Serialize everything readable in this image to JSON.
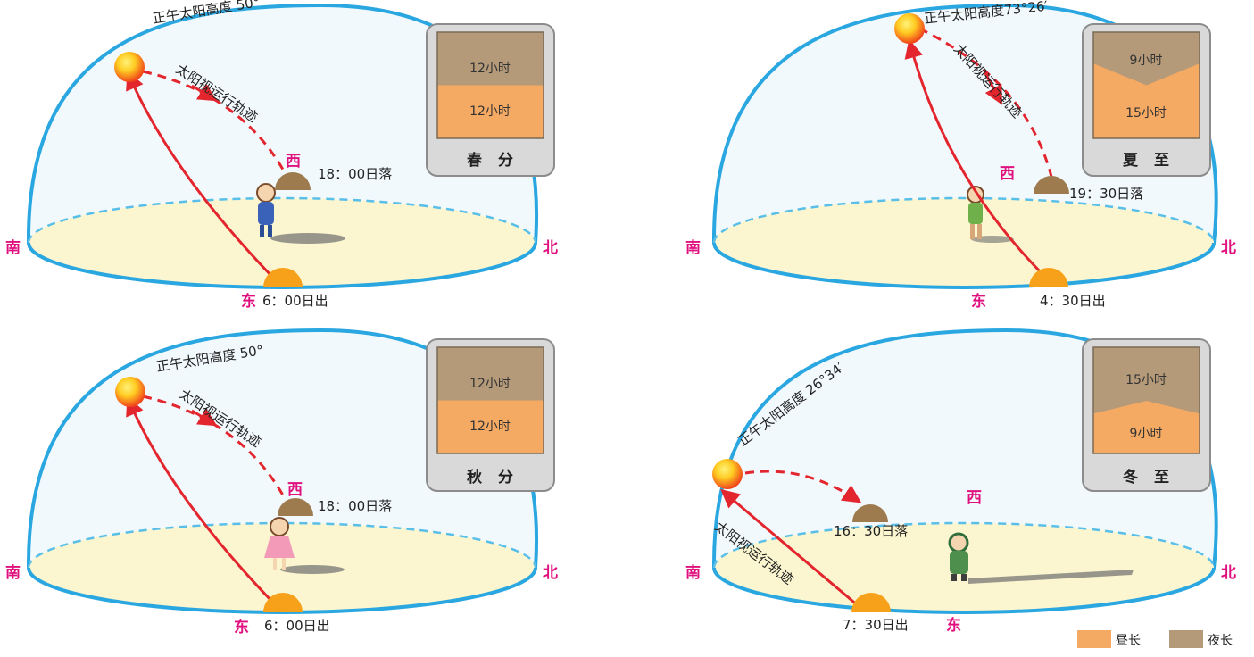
{
  "colors": {
    "day": "#f5aa63",
    "night": "#b59a7a",
    "dome": "#2aa7e0",
    "ground": "#fbf6cf",
    "path": "#e3262e",
    "direction_text": "#e0117f"
  },
  "legend": {
    "day_label": "昼长",
    "night_label": "夜长"
  },
  "panels": [
    {
      "season": "春 分",
      "noon_altitude": "正午太阳高度 50°",
      "path_label": "太阳视运行轨迹",
      "sunrise": "6：00日出",
      "sunset": "18：00日落",
      "day_hours": "12小时",
      "night_hours": "12小时",
      "day_fraction": 0.5,
      "dir_south": "南",
      "dir_north": "北",
      "dir_east": "东",
      "dir_west": "西"
    },
    {
      "season": "夏 至",
      "noon_altitude": "正午太阳高度73°26′",
      "path_label": "太阳视运行轨迹",
      "sunrise": "4：30日出",
      "sunset": "19：30日落",
      "day_hours": "15小时",
      "night_hours": "9小时",
      "day_fraction": 0.625,
      "dir_south": "南",
      "dir_north": "北",
      "dir_east": "东",
      "dir_west": "西"
    },
    {
      "season": "秋 分",
      "noon_altitude": "正午太阳高度 50°",
      "path_label": "太阳视运行轨迹",
      "sunrise": "6：00日出",
      "sunset": "18：00日落",
      "day_hours": "12小时",
      "night_hours": "12小时",
      "day_fraction": 0.5,
      "dir_south": "南",
      "dir_north": "北",
      "dir_east": "东",
      "dir_west": "西"
    },
    {
      "season": "冬 至",
      "noon_altitude": "正午太阳高度 26°34′",
      "path_label": "太阳视运行轨迹",
      "sunrise": "7：30日出",
      "sunset": "16：30日落",
      "day_hours": "9小时",
      "night_hours": "15小时",
      "day_fraction": 0.375,
      "dir_south": "南",
      "dir_north": "北",
      "dir_east": "东",
      "dir_west": "西"
    }
  ]
}
